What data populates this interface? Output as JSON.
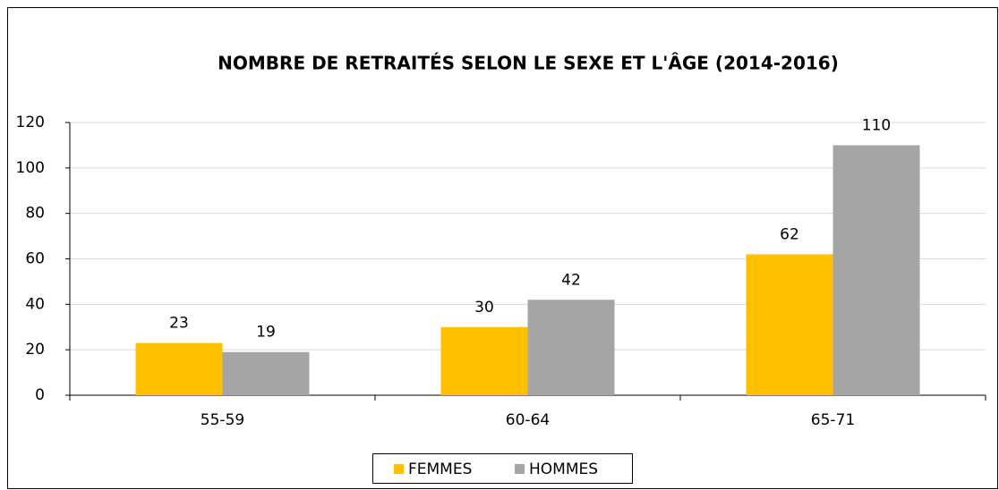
{
  "chart_data": {
    "type": "bar",
    "title": "NOMBRE DE RETRAITÉS SELON LE SEXE ET L'ÂGE (2014-2016)",
    "categories": [
      "55-59",
      "60-64",
      "65-71"
    ],
    "series": [
      {
        "name": "FEMMES",
        "color": "#ffc000",
        "values": [
          23,
          30,
          62
        ]
      },
      {
        "name": "HOMMES",
        "color": "#a5a5a5",
        "values": [
          19,
          42,
          110
        ]
      }
    ],
    "ylim": [
      0,
      120
    ],
    "yticks": [
      0,
      20,
      40,
      60,
      80,
      100,
      120
    ],
    "grid": true,
    "legend": "bottom"
  }
}
